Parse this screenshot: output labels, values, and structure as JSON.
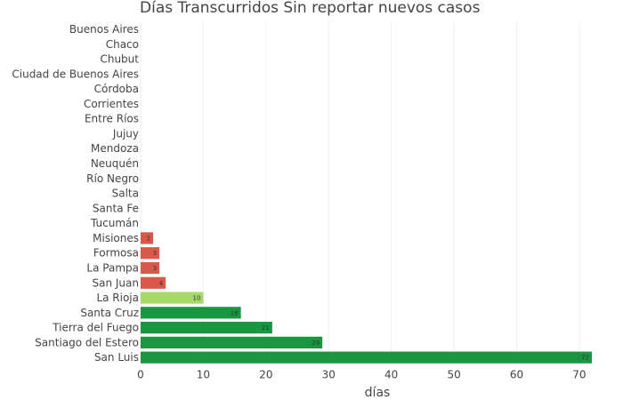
{
  "chart_data": {
    "type": "bar",
    "orientation": "horizontal",
    "title": "Días Transcurridos Sin reportar nuevos casos",
    "xlabel": "días",
    "ylabel": "",
    "xlim": [
      0,
      72
    ],
    "xticks": [
      0,
      10,
      20,
      30,
      40,
      50,
      60,
      70
    ],
    "grid": true,
    "categories": [
      "Buenos Aires",
      "Chaco",
      "Chubut",
      "Ciudad de Buenos Aires",
      "Córdoba",
      "Corrientes",
      "Entre Ríos",
      "Jujuy",
      "Mendoza",
      "Neuquén",
      "Río Negro",
      "Salta",
      "Santa Fe",
      "Tucumán",
      "Misiones",
      "Formosa",
      "La Pampa",
      "San Juan",
      "La Rioja",
      "Santa Cruz",
      "Tierra del Fuego",
      "Santiago del Estero",
      "San Luis"
    ],
    "values": [
      0,
      0,
      0,
      0,
      0,
      0,
      0,
      0,
      0,
      0,
      0,
      0,
      0,
      0,
      2,
      3,
      3,
      4,
      10,
      16,
      21,
      29,
      72
    ],
    "colors": [
      "#d9584a",
      "#d9584a",
      "#d9584a",
      "#d9584a",
      "#d9584a",
      "#d9584a",
      "#d9584a",
      "#d9584a",
      "#d9584a",
      "#d9584a",
      "#d9584a",
      "#d9584a",
      "#d9584a",
      "#d9584a",
      "#d9584a",
      "#d9584a",
      "#d9584a",
      "#d9584a",
      "#a6d96a",
      "#1a9641",
      "#1a9641",
      "#1a9641",
      "#1a9641"
    ]
  }
}
